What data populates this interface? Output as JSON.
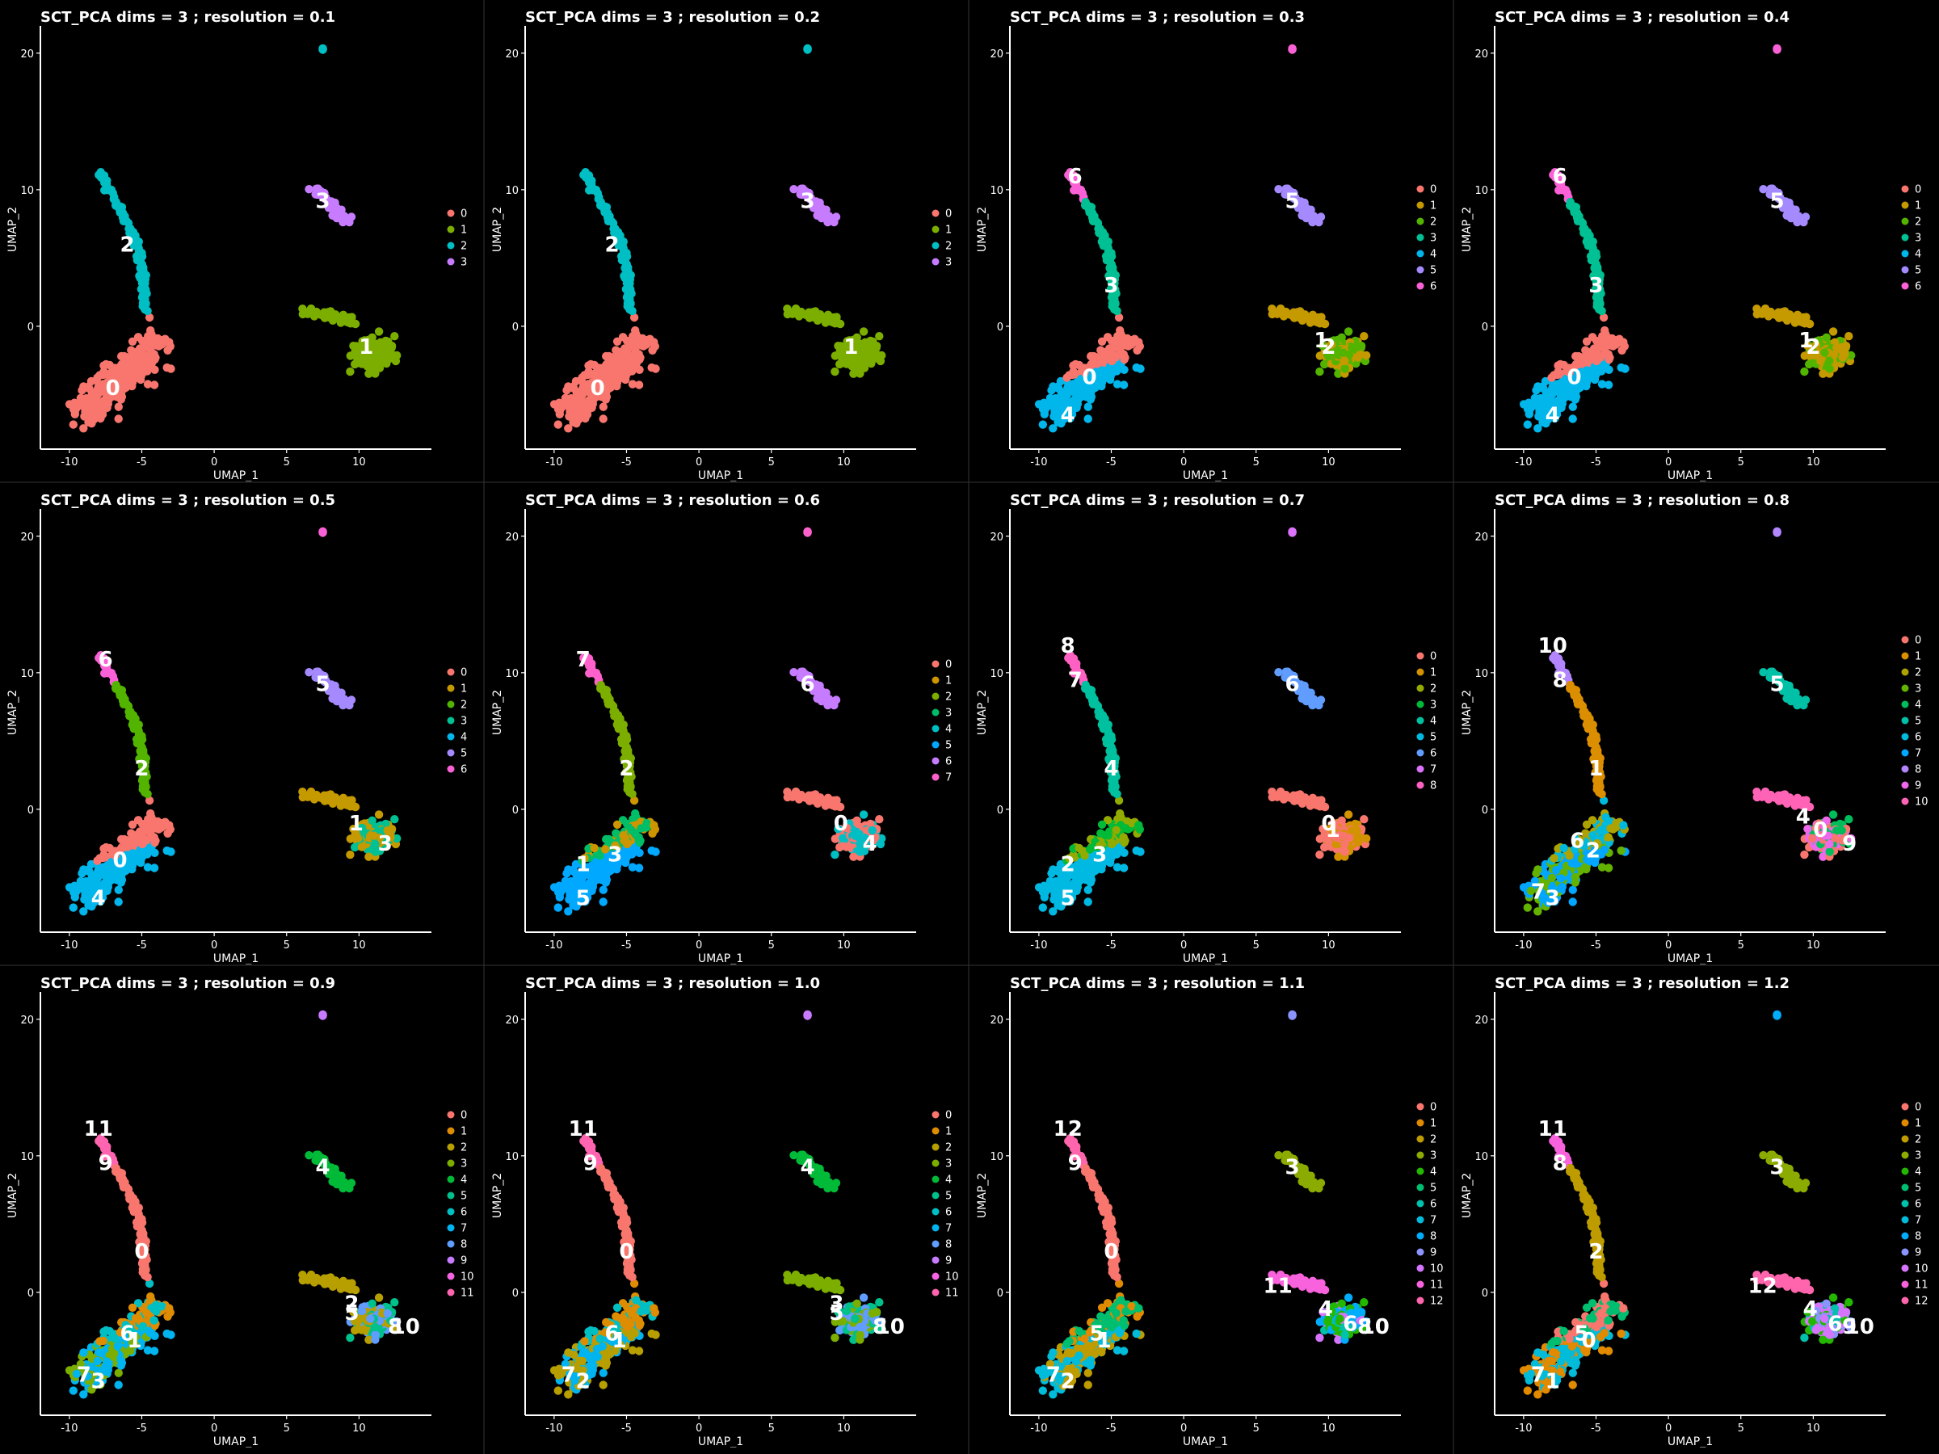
{
  "axis_labels": {
    "x": "UMAP_1",
    "y": "UMAP_2"
  },
  "palettes": {
    "k4": [
      "#F8766D",
      "#7CAE00",
      "#00BFC4",
      "#C77CFF"
    ],
    "k7": [
      "#F8766D",
      "#C49A00",
      "#53B400",
      "#00C094",
      "#00B6EB",
      "#A58AFF",
      "#FB61D7"
    ],
    "k8": [
      "#F8766D",
      "#CD9600",
      "#7CAE00",
      "#00BE67",
      "#00BFC4",
      "#00A9FF",
      "#C77CFF",
      "#FF61CC"
    ],
    "k9": [
      "#F8766D",
      "#D39200",
      "#93AA00",
      "#00BA38",
      "#00C19F",
      "#00B9E3",
      "#619CFF",
      "#DB72FB",
      "#FF61C3"
    ],
    "k11": [
      "#F8766D",
      "#DB8E00",
      "#AEA200",
      "#64B200",
      "#00BD5C",
      "#00C1A7",
      "#00BADE",
      "#00A6FF",
      "#B385FF",
      "#EF67EB",
      "#FF63B6"
    ],
    "k12": [
      "#F8766D",
      "#DE8C00",
      "#B79F00",
      "#7CAE00",
      "#00BA38",
      "#00C08B",
      "#00BFC4",
      "#00B4F0",
      "#619CFF",
      "#C77CFF",
      "#F564E3",
      "#FF64B0"
    ],
    "k13": [
      "#F8766D",
      "#E18A00",
      "#BE9C00",
      "#8CAB00",
      "#24B700",
      "#00BE70",
      "#00C1AB",
      "#00BBDA",
      "#00ACFC",
      "#8B93FF",
      "#D575FE",
      "#F962DD",
      "#FF65AC"
    ]
  },
  "chart_data": [
    {
      "type": "scatter",
      "title": "SCT_PCA dims =  3 ; resolution = 0.1",
      "xlabel": "UMAP_1",
      "ylabel": "UMAP_2",
      "xlim": [
        -12,
        15
      ],
      "ylim": [
        -9,
        22
      ],
      "x_ticks": [
        -10,
        -5,
        0,
        5,
        10
      ],
      "y_ticks": [
        0,
        10,
        20
      ],
      "legend": [
        "0",
        "1",
        "2",
        "3"
      ],
      "palette": "k4",
      "regions": {
        "low": 0,
        "mid": 0,
        "stem": 2,
        "tip": 2,
        "sing": 2,
        "isl": 3,
        "rc": 1,
        "rl": 1
      },
      "labels": [
        {
          "t": "0",
          "x": -7,
          "y": -4.5
        },
        {
          "t": "1",
          "x": 10.5,
          "y": -1.5
        },
        {
          "t": "2",
          "x": -6,
          "y": 6
        },
        {
          "t": "3",
          "x": 7.5,
          "y": 9.2
        }
      ]
    },
    {
      "type": "scatter",
      "title": "SCT_PCA dims =  3 ; resolution = 0.2",
      "xlabel": "UMAP_1",
      "ylabel": "UMAP_2",
      "xlim": [
        -12,
        15
      ],
      "ylim": [
        -9,
        22
      ],
      "x_ticks": [
        -10,
        -5,
        0,
        5,
        10
      ],
      "y_ticks": [
        0,
        10,
        20
      ],
      "legend": [
        "0",
        "1",
        "2",
        "3"
      ],
      "palette": "k4",
      "regions": {
        "low": 0,
        "mid": 0,
        "stem": 2,
        "tip": 2,
        "sing": 2,
        "isl": 3,
        "rc": 1,
        "rl": 1
      },
      "labels": [
        {
          "t": "0",
          "x": -7,
          "y": -4.5
        },
        {
          "t": "1",
          "x": 10.5,
          "y": -1.5
        },
        {
          "t": "2",
          "x": -6,
          "y": 6
        },
        {
          "t": "3",
          "x": 7.5,
          "y": 9.2
        }
      ]
    },
    {
      "type": "scatter",
      "title": "SCT_PCA dims =  3 ; resolution = 0.3",
      "xlabel": "UMAP_1",
      "ylabel": "UMAP_2",
      "xlim": [
        -12,
        15
      ],
      "ylim": [
        -9,
        22
      ],
      "x_ticks": [
        -10,
        -5,
        0,
        5,
        10
      ],
      "y_ticks": [
        0,
        10,
        20
      ],
      "legend": [
        "0",
        "1",
        "2",
        "3",
        "4",
        "5",
        "6"
      ],
      "palette": "k7",
      "regions": {
        "low": 4,
        "mid": 0,
        "stem": 3,
        "tip": 6,
        "sing": 6,
        "isl": 5,
        "rc": [
          1,
          2
        ],
        "rl": 1
      },
      "labels": [
        {
          "t": "0",
          "x": -6.5,
          "y": -3.7
        },
        {
          "t": "1",
          "x": 9.5,
          "y": -1
        },
        {
          "t": "2",
          "x": 10,
          "y": -1.5
        },
        {
          "t": "3",
          "x": -5,
          "y": 3
        },
        {
          "t": "4",
          "x": -8,
          "y": -6.5
        },
        {
          "t": "5",
          "x": 7.5,
          "y": 9.2
        },
        {
          "t": "6",
          "x": -7.5,
          "y": 11
        }
      ]
    },
    {
      "type": "scatter",
      "title": "SCT_PCA dims =  3 ; resolution = 0.4",
      "xlabel": "UMAP_1",
      "ylabel": "UMAP_2",
      "xlim": [
        -12,
        15
      ],
      "ylim": [
        -9,
        22
      ],
      "x_ticks": [
        -10,
        -5,
        0,
        5,
        10
      ],
      "y_ticks": [
        0,
        10,
        20
      ],
      "legend": [
        "0",
        "1",
        "2",
        "3",
        "4",
        "5",
        "6"
      ],
      "palette": "k7",
      "regions": {
        "low": 4,
        "mid": 0,
        "stem": 3,
        "tip": 6,
        "sing": 6,
        "isl": 5,
        "rc": [
          1,
          2
        ],
        "rl": 1
      },
      "labels": [
        {
          "t": "0",
          "x": -6.5,
          "y": -3.7
        },
        {
          "t": "1",
          "x": 9.5,
          "y": -1
        },
        {
          "t": "2",
          "x": 10,
          "y": -1.5
        },
        {
          "t": "3",
          "x": -5,
          "y": 3
        },
        {
          "t": "4",
          "x": -8,
          "y": -6.5
        },
        {
          "t": "5",
          "x": 7.5,
          "y": 9.2
        },
        {
          "t": "6",
          "x": -7.5,
          "y": 11
        }
      ]
    },
    {
      "type": "scatter",
      "title": "SCT_PCA dims =  3 ; resolution = 0.5",
      "xlabel": "UMAP_1",
      "ylabel": "UMAP_2",
      "xlim": [
        -12,
        15
      ],
      "ylim": [
        -9,
        22
      ],
      "x_ticks": [
        -10,
        -5,
        0,
        5,
        10
      ],
      "y_ticks": [
        0,
        10,
        20
      ],
      "legend": [
        "0",
        "1",
        "2",
        "3",
        "4",
        "5",
        "6"
      ],
      "palette": "k7",
      "regions": {
        "low": 4,
        "mid": 0,
        "stem": 2,
        "tip": 6,
        "sing": 6,
        "isl": 5,
        "rc": [
          1,
          3
        ],
        "rl": 1
      },
      "labels": [
        {
          "t": "0",
          "x": -6.5,
          "y": -3.7
        },
        {
          "t": "1",
          "x": 9.8,
          "y": -1
        },
        {
          "t": "2",
          "x": -5,
          "y": 3
        },
        {
          "t": "3",
          "x": 11.8,
          "y": -2.5
        },
        {
          "t": "4",
          "x": -8,
          "y": -6.5
        },
        {
          "t": "5",
          "x": 7.5,
          "y": 9.2
        },
        {
          "t": "6",
          "x": -7.5,
          "y": 11
        }
      ]
    },
    {
      "type": "scatter",
      "title": "SCT_PCA dims =  3 ; resolution = 0.6",
      "xlabel": "UMAP_1",
      "ylabel": "UMAP_2",
      "xlim": [
        -12,
        15
      ],
      "ylim": [
        -9,
        22
      ],
      "x_ticks": [
        -10,
        -5,
        0,
        5,
        10
      ],
      "y_ticks": [
        0,
        10,
        20
      ],
      "legend": [
        "0",
        "1",
        "2",
        "3",
        "4",
        "5",
        "6",
        "7"
      ],
      "palette": "k8",
      "regions": {
        "low": 5,
        "mid": [
          1,
          3
        ],
        "stem": 2,
        "tip": 7,
        "sing": 7,
        "isl": 6,
        "rc": [
          0,
          4
        ],
        "rl": 0
      },
      "labels": [
        {
          "t": "0",
          "x": 9.8,
          "y": -1
        },
        {
          "t": "1",
          "x": -8,
          "y": -4
        },
        {
          "t": "2",
          "x": -5,
          "y": 3
        },
        {
          "t": "3",
          "x": -5.8,
          "y": -3.3
        },
        {
          "t": "4",
          "x": 11.8,
          "y": -2.5
        },
        {
          "t": "5",
          "x": -8,
          "y": -6.5
        },
        {
          "t": "6",
          "x": 7.5,
          "y": 9.2
        },
        {
          "t": "7",
          "x": -8,
          "y": 11
        }
      ]
    },
    {
      "type": "scatter",
      "title": "SCT_PCA dims =  3 ; resolution = 0.7",
      "xlabel": "UMAP_1",
      "ylabel": "UMAP_2",
      "xlim": [
        -12,
        15
      ],
      "ylim": [
        -9,
        22
      ],
      "x_ticks": [
        -10,
        -5,
        0,
        5,
        10
      ],
      "y_ticks": [
        0,
        10,
        20
      ],
      "legend": [
        "0",
        "1",
        "2",
        "3",
        "4",
        "5",
        "6",
        "7",
        "8"
      ],
      "palette": "k9",
      "regions": {
        "low": 5,
        "mid": [
          2,
          3
        ],
        "stem": 4,
        "tip": 8,
        "sing": 7,
        "isl": 6,
        "rc": [
          0,
          1
        ],
        "rl": 0
      },
      "labels": [
        {
          "t": "0",
          "x": 10,
          "y": -1
        },
        {
          "t": "1",
          "x": 10.3,
          "y": -1.5
        },
        {
          "t": "2",
          "x": -8,
          "y": -4
        },
        {
          "t": "3",
          "x": -5.8,
          "y": -3.3
        },
        {
          "t": "4",
          "x": -5,
          "y": 3
        },
        {
          "t": "5",
          "x": -8,
          "y": -6.5
        },
        {
          "t": "6",
          "x": 7.5,
          "y": 9.2
        },
        {
          "t": "7",
          "x": -7.5,
          "y": 9.5
        },
        {
          "t": "8",
          "x": -8,
          "y": 12
        }
      ]
    },
    {
      "type": "scatter",
      "title": "SCT_PCA dims =  3 ; resolution = 0.8",
      "xlabel": "UMAP_1",
      "ylabel": "UMAP_2",
      "xlim": [
        -12,
        15
      ],
      "ylim": [
        -9,
        22
      ],
      "x_ticks": [
        -10,
        -5,
        0,
        5,
        10
      ],
      "y_ticks": [
        0,
        10,
        20
      ],
      "legend": [
        "0",
        "1",
        "2",
        "3",
        "4",
        "5",
        "6",
        "7",
        "8",
        "9",
        "10"
      ],
      "palette": "k11",
      "regions": {
        "low": [
          3,
          7
        ],
        "mid": [
          2,
          6
        ],
        "stem": 1,
        "tip": 8,
        "sing": 8,
        "isl": 5,
        "rc": [
          0,
          4,
          9
        ],
        "rl": 10
      },
      "labels": [
        {
          "t": "0",
          "x": 10.5,
          "y": -1.5
        },
        {
          "t": "1",
          "x": -5,
          "y": 3
        },
        {
          "t": "2",
          "x": -5.2,
          "y": -3
        },
        {
          "t": "3",
          "x": -8,
          "y": -6.5
        },
        {
          "t": "4",
          "x": 9.3,
          "y": -0.5
        },
        {
          "t": "5",
          "x": 7.5,
          "y": 9.2
        },
        {
          "t": "6",
          "x": -6.3,
          "y": -2.3
        },
        {
          "t": "7",
          "x": -9,
          "y": -6
        },
        {
          "t": "8",
          "x": -7.5,
          "y": 9.5
        },
        {
          "t": "9",
          "x": 12.5,
          "y": -2.5
        },
        {
          "t": "10",
          "x": -8,
          "y": 12
        }
      ]
    },
    {
      "type": "scatter",
      "title": "SCT_PCA dims =  3 ; resolution = 0.9",
      "xlabel": "UMAP_1",
      "ylabel": "UMAP_2",
      "xlim": [
        -12,
        15
      ],
      "ylim": [
        -9,
        22
      ],
      "x_ticks": [
        -10,
        -5,
        0,
        5,
        10
      ],
      "y_ticks": [
        0,
        10,
        20
      ],
      "legend": [
        "0",
        "1",
        "2",
        "3",
        "4",
        "5",
        "6",
        "7",
        "8",
        "9",
        "10",
        "11"
      ],
      "palette": "k12",
      "regions": {
        "low": [
          3,
          7
        ],
        "mid": [
          1,
          6
        ],
        "stem": 0,
        "tip": 11,
        "sing": 9,
        "isl": 4,
        "rc": [
          2,
          5,
          8
        ],
        "rl": 2
      },
      "labels": [
        {
          "t": "0",
          "x": -5,
          "y": 3
        },
        {
          "t": "1",
          "x": -5.5,
          "y": -3.5
        },
        {
          "t": "2",
          "x": 9.5,
          "y": -0.8
        },
        {
          "t": "3",
          "x": -8,
          "y": -6.5
        },
        {
          "t": "4",
          "x": 7.5,
          "y": 9.2
        },
        {
          "t": "5",
          "x": 9.5,
          "y": -1.5
        },
        {
          "t": "6",
          "x": -6,
          "y": -3
        },
        {
          "t": "7",
          "x": -9,
          "y": -6
        },
        {
          "t": "8",
          "x": 12.5,
          "y": -2.5
        },
        {
          "t": "9",
          "x": -7.5,
          "y": 9.5
        },
        {
          "t": "10",
          "x": 13.2,
          "y": -2.5
        },
        {
          "t": "11",
          "x": -8,
          "y": 12
        }
      ]
    },
    {
      "type": "scatter",
      "title": "SCT_PCA dims =  3 ; resolution = 1.0",
      "xlabel": "UMAP_1",
      "ylabel": "UMAP_2",
      "xlim": [
        -12,
        15
      ],
      "ylim": [
        -9,
        22
      ],
      "x_ticks": [
        -10,
        -5,
        0,
        5,
        10
      ],
      "y_ticks": [
        0,
        10,
        20
      ],
      "legend": [
        "0",
        "1",
        "2",
        "3",
        "4",
        "5",
        "6",
        "7",
        "8",
        "9",
        "10",
        "11"
      ],
      "palette": "k12",
      "regions": {
        "low": [
          2,
          7
        ],
        "mid": [
          1,
          6
        ],
        "stem": 0,
        "tip": 11,
        "sing": 9,
        "isl": 4,
        "rc": [
          3,
          5,
          8
        ],
        "rl": 3
      },
      "labels": [
        {
          "t": "0",
          "x": -5,
          "y": 3
        },
        {
          "t": "1",
          "x": -5.5,
          "y": -3.5
        },
        {
          "t": "2",
          "x": -8,
          "y": -6.5
        },
        {
          "t": "3",
          "x": 9.5,
          "y": -0.8
        },
        {
          "t": "4",
          "x": 7.5,
          "y": 9.2
        },
        {
          "t": "5",
          "x": 9.5,
          "y": -1.5
        },
        {
          "t": "6",
          "x": -6,
          "y": -3
        },
        {
          "t": "7",
          "x": -9,
          "y": -6
        },
        {
          "t": "8",
          "x": 12.5,
          "y": -2.5
        },
        {
          "t": "9",
          "x": -7.5,
          "y": 9.5
        },
        {
          "t": "10",
          "x": 13.2,
          "y": -2.5
        },
        {
          "t": "11",
          "x": -8,
          "y": 12
        }
      ]
    },
    {
      "type": "scatter",
      "title": "SCT_PCA dims =  3 ; resolution = 1.1",
      "xlabel": "UMAP_1",
      "ylabel": "UMAP_2",
      "xlim": [
        -12,
        15
      ],
      "ylim": [
        -9,
        22
      ],
      "x_ticks": [
        -10,
        -5,
        0,
        5,
        10
      ],
      "y_ticks": [
        0,
        10,
        20
      ],
      "legend": [
        "0",
        "1",
        "2",
        "3",
        "4",
        "5",
        "6",
        "7",
        "8",
        "9",
        "10",
        "11",
        "12"
      ],
      "palette": "k13",
      "regions": {
        "low": [
          2,
          7
        ],
        "mid": [
          1,
          5
        ],
        "stem": 0,
        "tip": 12,
        "sing": 9,
        "isl": 3,
        "rc": [
          4,
          6,
          8,
          10
        ],
        "rl": 11
      },
      "labels": [
        {
          "t": "0",
          "x": -5,
          "y": 3
        },
        {
          "t": "1",
          "x": -5.5,
          "y": -3.5
        },
        {
          "t": "2",
          "x": -8,
          "y": -6.5
        },
        {
          "t": "3",
          "x": 7.5,
          "y": 9.2
        },
        {
          "t": "4",
          "x": 9.8,
          "y": -1.2
        },
        {
          "t": "5",
          "x": -6,
          "y": -3
        },
        {
          "t": "6",
          "x": 11.5,
          "y": -2.3
        },
        {
          "t": "7",
          "x": -9,
          "y": -6
        },
        {
          "t": "8",
          "x": 12.5,
          "y": -2.5
        },
        {
          "t": "9",
          "x": -7.5,
          "y": 9.5
        },
        {
          "t": "10",
          "x": 13.2,
          "y": -2.5
        },
        {
          "t": "11",
          "x": 6.5,
          "y": 0.5
        },
        {
          "t": "12",
          "x": -8,
          "y": 12
        }
      ]
    },
    {
      "type": "scatter",
      "title": "SCT_PCA dims =  3 ; resolution = 1.2",
      "xlabel": "UMAP_1",
      "ylabel": "UMAP_2",
      "xlim": [
        -12,
        15
      ],
      "ylim": [
        -9,
        22
      ],
      "x_ticks": [
        -10,
        -5,
        0,
        5,
        10
      ],
      "y_ticks": [
        0,
        10,
        20
      ],
      "legend": [
        "0",
        "1",
        "2",
        "3",
        "4",
        "5",
        "6",
        "7",
        "8",
        "9",
        "10",
        "11",
        "12"
      ],
      "palette": "k13",
      "regions": {
        "low": [
          1,
          7
        ],
        "mid": [
          0,
          5
        ],
        "stem": 2,
        "tip": 11,
        "sing": 8,
        "isl": 3,
        "rc": [
          4,
          6,
          9,
          10
        ],
        "rl": 12
      },
      "labels": [
        {
          "t": "0",
          "x": -5.5,
          "y": -3.5
        },
        {
          "t": "1",
          "x": -8,
          "y": -6.5
        },
        {
          "t": "2",
          "x": -5,
          "y": 3
        },
        {
          "t": "3",
          "x": 7.5,
          "y": 9.2
        },
        {
          "t": "4",
          "x": 9.8,
          "y": -1.2
        },
        {
          "t": "5",
          "x": -6,
          "y": -3
        },
        {
          "t": "6",
          "x": 11.5,
          "y": -2.3
        },
        {
          "t": "7",
          "x": -9,
          "y": -6
        },
        {
          "t": "8",
          "x": -7.5,
          "y": 9.5
        },
        {
          "t": "9",
          "x": 12.5,
          "y": -2.5
        },
        {
          "t": "10",
          "x": 13.2,
          "y": -2.5
        },
        {
          "t": "11",
          "x": -8,
          "y": 12
        },
        {
          "t": "12",
          "x": 6.5,
          "y": 0.5
        }
      ]
    }
  ]
}
